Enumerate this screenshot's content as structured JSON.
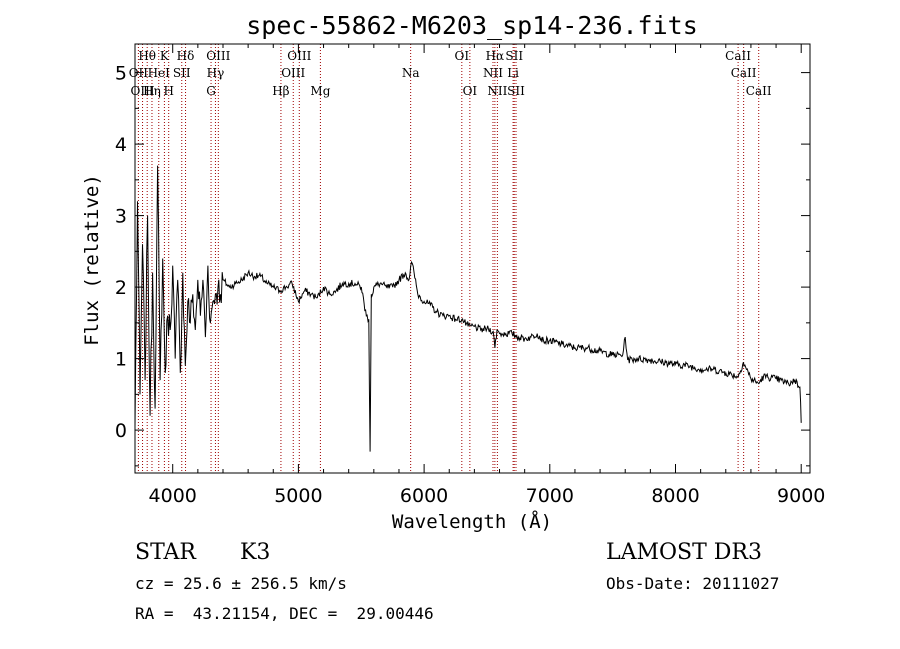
{
  "chart_data": {
    "type": "line",
    "title": "spec-55862-M6203_sp14-236.fits",
    "xlabel": "Wavelength (Å)",
    "ylabel": "Flux (relative)",
    "xlim": [
      3700,
      9070
    ],
    "ylim": [
      -0.6,
      5.4
    ],
    "xticks": [
      4000,
      5000,
      6000,
      7000,
      8000,
      9000
    ],
    "xtick_labels": [
      "4000",
      "5000",
      "6000",
      "7000",
      "8000",
      "9000"
    ],
    "yticks": [
      0,
      1,
      2,
      3,
      4,
      5
    ],
    "ytick_labels": [
      "0",
      "1",
      "2",
      "3",
      "4",
      "5"
    ],
    "grid": false,
    "series": [
      {
        "name": "spectrum",
        "x": [
          3700,
          3720,
          3740,
          3760,
          3780,
          3800,
          3820,
          3840,
          3860,
          3880,
          3900,
          3920,
          3940,
          3960,
          3980,
          4000,
          4020,
          4040,
          4060,
          4080,
          4100,
          4120,
          4140,
          4160,
          4180,
          4200,
          4220,
          4240,
          4260,
          4280,
          4300,
          4320,
          4340,
          4360,
          4380,
          4400,
          4450,
          4500,
          4550,
          4600,
          4650,
          4700,
          4750,
          4800,
          4850,
          4900,
          4950,
          5000,
          5050,
          5100,
          5150,
          5200,
          5250,
          5300,
          5350,
          5400,
          5450,
          5500,
          5540,
          5560,
          5570,
          5580,
          5590,
          5600,
          5650,
          5700,
          5750,
          5800,
          5850,
          5880,
          5900,
          5920,
          5950,
          6000,
          6050,
          6100,
          6150,
          6200,
          6250,
          6300,
          6350,
          6400,
          6450,
          6500,
          6550,
          6563,
          6580,
          6600,
          6650,
          6700,
          6750,
          6800,
          6850,
          6900,
          6950,
          7000,
          7100,
          7200,
          7300,
          7400,
          7500,
          7580,
          7600,
          7620,
          7700,
          7800,
          7900,
          8000,
          8100,
          8200,
          8300,
          8400,
          8500,
          8540,
          8600,
          8660,
          8700,
          8800,
          8900,
          8950,
          8990,
          9000
        ],
        "values": [
          0.05,
          3.2,
          0.5,
          2.6,
          0.7,
          3.0,
          0.2,
          2.2,
          0.3,
          3.7,
          0.7,
          2.4,
          0.8,
          1.6,
          1.4,
          2.3,
          1.0,
          2.1,
          0.8,
          2.2,
          0.9,
          1.8,
          1.5,
          1.9,
          1.4,
          2.1,
          1.6,
          2.1,
          1.3,
          2.3,
          1.5,
          1.8,
          1.9,
          2.0,
          1.9,
          2.1,
          2.0,
          2.05,
          2.1,
          2.2,
          2.15,
          2.15,
          2.05,
          2.0,
          1.95,
          2.0,
          2.05,
          1.8,
          1.95,
          1.9,
          1.85,
          2.0,
          1.9,
          1.95,
          2.05,
          2.05,
          2.05,
          2.0,
          1.6,
          1.55,
          -0.3,
          1.9,
          1.9,
          2.0,
          2.05,
          2.0,
          2.0,
          2.1,
          2.2,
          2.1,
          2.35,
          2.2,
          1.9,
          1.8,
          1.75,
          1.65,
          1.6,
          1.6,
          1.55,
          1.55,
          1.45,
          1.45,
          1.4,
          1.42,
          1.38,
          1.15,
          1.4,
          1.35,
          1.35,
          1.35,
          1.3,
          1.28,
          1.3,
          1.35,
          1.25,
          1.25,
          1.2,
          1.15,
          1.15,
          1.1,
          1.05,
          1.05,
          1.3,
          0.98,
          1.0,
          0.98,
          0.95,
          0.92,
          0.9,
          0.85,
          0.85,
          0.8,
          0.75,
          0.95,
          0.72,
          0.65,
          0.75,
          0.72,
          0.65,
          0.7,
          0.6,
          0.1
        ]
      }
    ],
    "spectral_lines": [
      {
        "label": "Hθ",
        "x": 3797,
        "row": 0
      },
      {
        "label": "K",
        "x": 3934,
        "row": 0
      },
      {
        "label": "Hδ",
        "x": 4102,
        "row": 0
      },
      {
        "label": "OIII",
        "x": 4363,
        "row": 0
      },
      {
        "label": "OIII",
        "x": 5007,
        "row": 0
      },
      {
        "label": "OI",
        "x": 6300,
        "row": 0
      },
      {
        "label": "Hα",
        "x": 6563,
        "row": 0
      },
      {
        "label": "SII",
        "x": 6717,
        "row": 0
      },
      {
        "label": "CaII",
        "x": 8498,
        "row": 0
      },
      {
        "label": "OII",
        "x": 3727,
        "row": 1
      },
      {
        "label": "HeI",
        "x": 3889,
        "row": 1
      },
      {
        "label": "SII",
        "x": 4072,
        "row": 1
      },
      {
        "label": "Hγ",
        "x": 4340,
        "row": 1
      },
      {
        "label": "OIII",
        "x": 4959,
        "row": 1
      },
      {
        "label": "Na",
        "x": 5893,
        "row": 1
      },
      {
        "label": "NII",
        "x": 6548,
        "row": 1
      },
      {
        "label": "Li",
        "x": 6708,
        "row": 1
      },
      {
        "label": "CaII",
        "x": 8542,
        "row": 1
      },
      {
        "label": "OIII",
        "x": 3760,
        "row": 2
      },
      {
        "label": "Hη",
        "x": 3835,
        "row": 2
      },
      {
        "label": "H",
        "x": 3968,
        "row": 2
      },
      {
        "label": "G",
        "x": 4305,
        "row": 2
      },
      {
        "label": "Hβ",
        "x": 4861,
        "row": 2
      },
      {
        "label": "Mg",
        "x": 5175,
        "row": 2
      },
      {
        "label": "OI",
        "x": 6364,
        "row": 2
      },
      {
        "label": "NII",
        "x": 6583,
        "row": 2
      },
      {
        "label": "SII",
        "x": 6731,
        "row": 2
      },
      {
        "label": "CaII",
        "x": 8662,
        "row": 2
      }
    ],
    "line_marker_color": "#a00000"
  },
  "info": {
    "object_class": "STAR",
    "subclass": "K3",
    "survey": "LAMOST DR3",
    "redshift": "cz = 25.6 ± 256.5 km/s",
    "obs_date": "Obs-Date: 20111027",
    "coords": "RA =  43.21154, DEC =  29.00446"
  }
}
